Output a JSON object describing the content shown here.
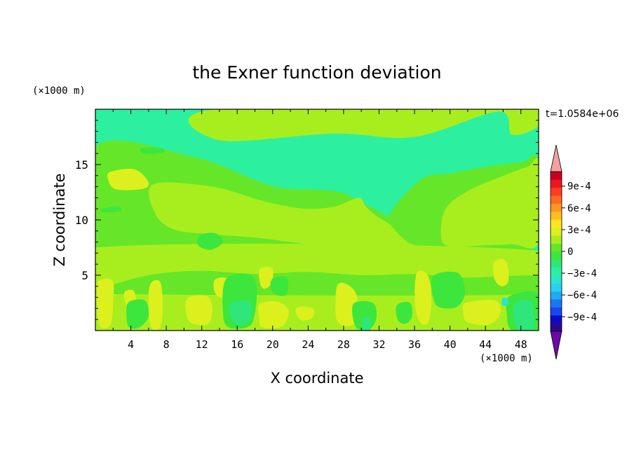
{
  "chart_data": {
    "type": "heatmap",
    "title": "the Exner function deviation",
    "xlabel": "X coordinate",
    "ylabel": "Z coordinate",
    "x_unit": "(×1000 m)",
    "y_unit": "(×1000 m)",
    "time_label": "t=1.0584e+06",
    "xlim": [
      0,
      50
    ],
    "ylim": [
      0,
      20
    ],
    "x_ticks": [
      4,
      8,
      12,
      16,
      20,
      24,
      28,
      32,
      36,
      40,
      44,
      48
    ],
    "y_ticks": [
      5,
      10,
      15
    ],
    "colorbar": {
      "min": -0.0011,
      "max": 0.0011,
      "step": 0.0001,
      "labels": [
        {
          "value": 0.0009,
          "text": "9e-4"
        },
        {
          "value": 0.0006,
          "text": "6e-4"
        },
        {
          "value": 0.0003,
          "text": "3e-4"
        },
        {
          "value": 0,
          "text": "0"
        },
        {
          "value": -0.0003,
          "text": "−3e-4"
        },
        {
          "value": -0.0006,
          "text": "−6e-4"
        },
        {
          "value": -0.0009,
          "text": "−9e-4"
        }
      ],
      "colors_low_to_high": [
        "#6a0aa8",
        "#2a0a8c",
        "#0a0ac8",
        "#1a46f0",
        "#1a78f0",
        "#20aaf4",
        "#26d2f0",
        "#2ae6c8",
        "#2cf0a0",
        "#2ee67a",
        "#3ce63c",
        "#66e628",
        "#a8ee1e",
        "#dcf01e",
        "#ffe61e",
        "#ffbe1e",
        "#ff961e",
        "#ff6a1e",
        "#ff3c1e",
        "#f0141e",
        "#c8001e",
        "#f4a0a0"
      ]
    },
    "field_regions": [
      {
        "value": 5e-05,
        "polygon": [
          [
            0,
            0
          ],
          [
            50,
            0
          ],
          [
            50,
            3.5
          ],
          [
            0,
            3.5
          ]
        ]
      },
      {
        "value": -5e-05,
        "polygon": [
          [
            0,
            16.6
          ],
          [
            11,
            15.7
          ],
          [
            18,
            13.6
          ],
          [
            21,
            12.9
          ],
          [
            27,
            12.6
          ],
          [
            29.5,
            11.8
          ],
          [
            31.5,
            11
          ],
          [
            33,
            10.4
          ],
          [
            34,
            11.5
          ],
          [
            37,
            13.8
          ],
          [
            40,
            14.2
          ],
          [
            44,
            14.8
          ],
          [
            48,
            15.2
          ],
          [
            50,
            15.4
          ],
          [
            50,
            8
          ],
          [
            46,
            7.4
          ],
          [
            40,
            7.5
          ],
          [
            34,
            7.6
          ],
          [
            30,
            7.4
          ],
          [
            26,
            7.8
          ],
          [
            22,
            7.8
          ],
          [
            17,
            7.1
          ],
          [
            10,
            6.8
          ],
          [
            5,
            6.6
          ],
          [
            0,
            6.4
          ]
        ]
      },
      {
        "value": 5e-05,
        "polygon": [
          [
            13.6,
            20
          ],
          [
            50,
            20
          ],
          [
            50,
            18.5
          ],
          [
            47,
            17.7
          ],
          [
            45.5,
            19.8
          ],
          [
            36,
            17.5
          ],
          [
            27,
            17.8
          ],
          [
            14,
            17.2
          ]
        ]
      },
      {
        "value": 5e-05,
        "polygon": [
          [
            6.5,
            13.2
          ],
          [
            13.2,
            13.0
          ],
          [
            18.5,
            11.8
          ],
          [
            21.2,
            11.3
          ],
          [
            23.8,
            11.0
          ],
          [
            27.0,
            11.2
          ],
          [
            29.7,
            12.0
          ],
          [
            30.5,
            11.2
          ],
          [
            31.8,
            10.3
          ],
          [
            33.2,
            9.6
          ],
          [
            34.2,
            8.7
          ],
          [
            35.2,
            8.0
          ],
          [
            36.0,
            7.5
          ],
          [
            30.0,
            7.3
          ],
          [
            24.0,
            7.8
          ],
          [
            18.0,
            8.4
          ],
          [
            13.2,
            8.7
          ],
          [
            9.0,
            9.1
          ],
          [
            6.8,
            10.5
          ]
        ]
      },
      {
        "value": 5e-05,
        "polygon": [
          [
            39.5,
            11.0
          ],
          [
            42.0,
            12.6
          ],
          [
            45.4,
            13.8
          ],
          [
            48.7,
            14.8
          ],
          [
            50.0,
            15.1
          ],
          [
            50.0,
            8.0
          ],
          [
            47.0,
            7.8
          ],
          [
            44.0,
            7.7
          ],
          [
            40.0,
            7.6
          ],
          [
            39.0,
            8.5
          ]
        ]
      },
      {
        "value": 5e-05,
        "polygon": [
          [
            0,
            7.5
          ],
          [
            50,
            7.2
          ],
          [
            50,
            3.5
          ],
          [
            0,
            3.5
          ]
        ]
      },
      {
        "value": -5e-05,
        "polygon": [
          [
            0,
            3.6
          ],
          [
            6,
            5.0
          ],
          [
            12,
            5.4
          ],
          [
            18,
            5.1
          ],
          [
            24,
            5.3
          ],
          [
            30,
            5.0
          ],
          [
            36,
            5.1
          ],
          [
            42,
            4.8
          ],
          [
            50,
            4.9
          ],
          [
            50,
            3.3
          ],
          [
            0,
            3.3
          ]
        ]
      },
      {
        "value": 0.00015,
        "polygon": [
          [
            1.6,
            14.3
          ],
          [
            4.2,
            14.6
          ],
          [
            5.7,
            13.8
          ],
          [
            5.9,
            13.0
          ],
          [
            4.3,
            12.7
          ],
          [
            2.2,
            12.8
          ],
          [
            1.5,
            13.5
          ]
        ]
      },
      {
        "value": -0.00015,
        "polygon": [
          [
            5.3,
            16.5
          ],
          [
            7.5,
            16.5
          ],
          [
            7.6,
            16.1
          ],
          [
            5.4,
            16.0
          ]
        ]
      },
      {
        "value": -0.00015,
        "polygon": [
          [
            0.8,
            11.0
          ],
          [
            2.5,
            11.2
          ],
          [
            2.9,
            10.8
          ],
          [
            0.9,
            10.7
          ]
        ]
      },
      {
        "value": -0.00015,
        "polygon": [
          [
            11.8,
            8.6
          ],
          [
            13.5,
            8.8
          ],
          [
            14.4,
            8.0
          ],
          [
            13.0,
            7.3
          ],
          [
            11.6,
            7.7
          ]
        ]
      },
      {
        "value": 0.00015,
        "polygon": [
          [
            0.3,
            4.4
          ],
          [
            1.9,
            4.5
          ],
          [
            2.0,
            2.6
          ],
          [
            1.7,
            0.5
          ],
          [
            0.5,
            0.4
          ],
          [
            0.2,
            2.5
          ]
        ]
      },
      {
        "value": 0.00015,
        "polygon": [
          [
            3.3,
            3.5
          ],
          [
            4.3,
            3.6
          ],
          [
            4.6,
            2.5
          ],
          [
            4.0,
            2.0
          ],
          [
            3.4,
            2.5
          ]
        ]
      },
      {
        "value": -0.00015,
        "polygon": [
          [
            3.8,
            2.6
          ],
          [
            5.6,
            2.7
          ],
          [
            6.0,
            1.3
          ],
          [
            5.0,
            0.3
          ],
          [
            3.8,
            0.3
          ],
          [
            3.5,
            1.5
          ]
        ]
      },
      {
        "value": 0.00015,
        "polygon": [
          [
            6.2,
            4.2
          ],
          [
            7.3,
            4.4
          ],
          [
            7.6,
            2.3
          ],
          [
            7.3,
            0.3
          ],
          [
            6.3,
            0.3
          ],
          [
            6.0,
            2.3
          ]
        ]
      },
      {
        "value": 0.00015,
        "polygon": [
          [
            10.5,
            3.0
          ],
          [
            12.6,
            3.1
          ],
          [
            13.2,
            2.0
          ],
          [
            12.7,
            0.6
          ],
          [
            10.8,
            0.7
          ],
          [
            10.2,
            1.8
          ]
        ]
      },
      {
        "value": 0.00015,
        "polygon": [
          [
            13.5,
            4.6
          ],
          [
            14.8,
            4.7
          ],
          [
            15.0,
            3.5
          ],
          [
            14.1,
            3.0
          ],
          [
            13.4,
            3.6
          ]
        ]
      },
      {
        "value": -0.00015,
        "polygon": [
          [
            14.7,
            4.6
          ],
          [
            17.3,
            5.1
          ],
          [
            18.2,
            3.9
          ],
          [
            17.9,
            1.2
          ],
          [
            17.1,
            0.3
          ],
          [
            15.0,
            0.3
          ],
          [
            14.4,
            1.6
          ]
        ]
      },
      {
        "value": -0.00025,
        "polygon": [
          [
            15.3,
            2.5
          ],
          [
            17.4,
            2.6
          ],
          [
            17.5,
            1.0
          ],
          [
            16.2,
            0.5
          ],
          [
            15.3,
            1.1
          ]
        ]
      },
      {
        "value": 0.00015,
        "polygon": [
          [
            18.6,
            5.6
          ],
          [
            20.0,
            5.6
          ],
          [
            19.8,
            4.2
          ],
          [
            18.9,
            3.8
          ],
          [
            18.5,
            4.6
          ]
        ]
      },
      {
        "value": -0.00015,
        "polygon": [
          [
            20.0,
            4.7
          ],
          [
            21.6,
            4.8
          ],
          [
            21.6,
            3.3
          ],
          [
            20.5,
            3.2
          ],
          [
            19.8,
            3.8
          ]
        ]
      },
      {
        "value": 0.00015,
        "polygon": [
          [
            18.5,
            2.4
          ],
          [
            20.5,
            2.6
          ],
          [
            21.8,
            1.8
          ],
          [
            21.1,
            0.4
          ],
          [
            18.8,
            0.3
          ],
          [
            18.5,
            1.2
          ]
        ]
      },
      {
        "value": 0.00015,
        "polygon": [
          [
            22.8,
            2.1
          ],
          [
            24.5,
            2.0
          ],
          [
            24.5,
            1.2
          ],
          [
            23.4,
            0.9
          ],
          [
            22.7,
            1.4
          ]
        ]
      },
      {
        "value": 0.00015,
        "polygon": [
          [
            27.3,
            4.1
          ],
          [
            28.3,
            4.2
          ],
          [
            29.4,
            3.3
          ],
          [
            29.6,
            1.0
          ],
          [
            28.5,
            0.4
          ],
          [
            27.3,
            0.8
          ],
          [
            27.1,
            2.3
          ]
        ]
      },
      {
        "value": -0.00015,
        "polygon": [
          [
            29.1,
            2.4
          ],
          [
            31.3,
            2.5
          ],
          [
            31.7,
            1.2
          ],
          [
            31.0,
            0.2
          ],
          [
            29.4,
            0.3
          ]
        ]
      },
      {
        "value": -0.00025,
        "polygon": [
          [
            30.2,
            1.1
          ],
          [
            31.0,
            1.1
          ],
          [
            31.0,
            0.0
          ],
          [
            30.2,
            0.0
          ]
        ]
      },
      {
        "value": -0.00015,
        "polygon": [
          [
            34.0,
            2.3
          ],
          [
            35.5,
            2.5
          ],
          [
            35.7,
            1.2
          ],
          [
            34.9,
            0.6
          ],
          [
            34.1,
            1.0
          ]
        ]
      },
      {
        "value": 0.00015,
        "polygon": [
          [
            36.2,
            5.1
          ],
          [
            37.4,
            5.1
          ],
          [
            37.9,
            3.5
          ],
          [
            37.7,
            1.0
          ],
          [
            36.8,
            0.6
          ],
          [
            36.1,
            2.0
          ]
        ]
      },
      {
        "value": -0.00015,
        "polygon": [
          [
            38.2,
            5.0
          ],
          [
            40.9,
            5.2
          ],
          [
            41.7,
            3.4
          ],
          [
            40.7,
            2.1
          ],
          [
            38.6,
            2.2
          ],
          [
            38.0,
            3.6
          ]
        ]
      },
      {
        "value": 0.00015,
        "polygon": [
          [
            41.8,
            2.5
          ],
          [
            45.2,
            2.7
          ],
          [
            45.6,
            1.4
          ],
          [
            44.2,
            0.5
          ],
          [
            41.9,
            0.8
          ],
          [
            41.5,
            1.7
          ]
        ]
      },
      {
        "value": 0.00015,
        "polygon": [
          [
            45.0,
            6.2
          ],
          [
            46.3,
            6.3
          ],
          [
            46.6,
            4.5
          ],
          [
            45.8,
            4.0
          ],
          [
            45.0,
            4.7
          ]
        ]
      },
      {
        "value": -0.00015,
        "polygon": [
          [
            46.7,
            3.1
          ],
          [
            50.0,
            3.3
          ],
          [
            50.0,
            0.0
          ],
          [
            47.0,
            0.0
          ],
          [
            46.4,
            1.6
          ]
        ]
      },
      {
        "value": -0.00025,
        "polygon": [
          [
            47.4,
            2.5
          ],
          [
            49.2,
            2.6
          ],
          [
            49.4,
            0.1
          ],
          [
            47.8,
            0.0
          ],
          [
            47.2,
            1.3
          ]
        ]
      },
      {
        "value": -0.00045,
        "polygon": [
          [
            45.9,
            2.9
          ],
          [
            46.5,
            2.9
          ],
          [
            46.5,
            2.3
          ],
          [
            45.9,
            2.3
          ]
        ]
      }
    ]
  }
}
